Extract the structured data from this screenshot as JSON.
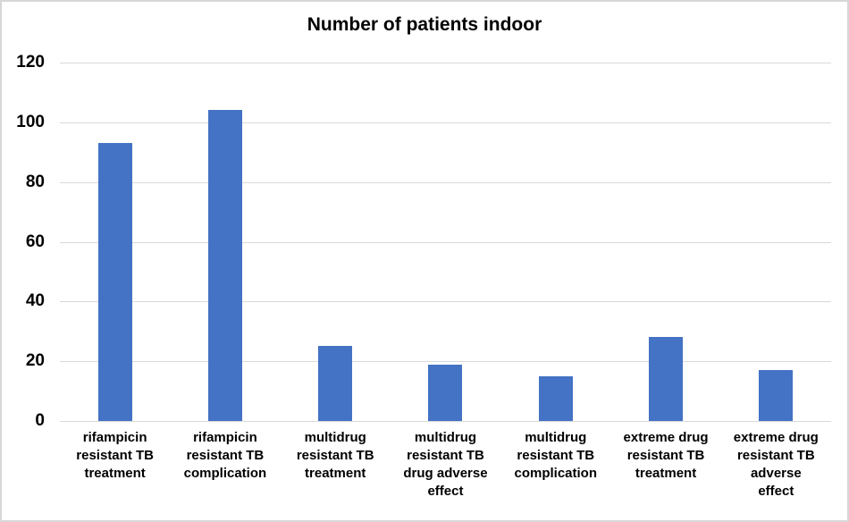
{
  "chart_data": {
    "type": "bar",
    "title": "Number of patients indoor",
    "categories": [
      "rifampicin\nresistant TB\ntreatment",
      "rifampicin\nresistant TB\ncomplication",
      "multidrug\nresistant TB\ntreatment",
      "multidrug\nresistant TB\ndrug adverse\neffect",
      "multidrug\nresistant TB\ncomplication",
      "extreme drug\nresistant TB\ntreatment",
      "extreme drug\nresistant TB\nadverse\neffect"
    ],
    "values": [
      93,
      104,
      25,
      19,
      15,
      28,
      17
    ],
    "xlabel": "",
    "ylabel": "",
    "ylim": [
      0,
      120
    ],
    "ytick_step": 20,
    "ytick_labels": [
      "0",
      "20",
      "40",
      "60",
      "80",
      "100",
      "120"
    ],
    "grid": "horizontal",
    "legend": "none",
    "colors": {
      "bar_fill": "#4472c4",
      "gridline": "#d9d9d9",
      "text": "#000000",
      "chart_border": "#d7d7d7",
      "background": "#ffffff"
    }
  }
}
